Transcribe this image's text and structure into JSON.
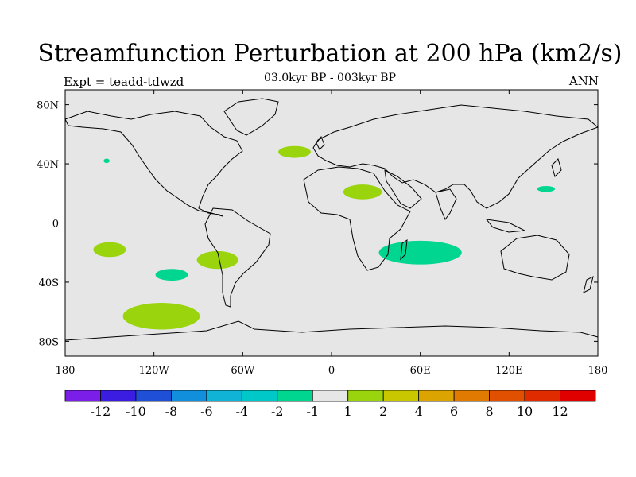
{
  "title": "Streamfunction Perturbation at 200 hPa (km2/s)",
  "subtitle": "03.0kyr BP - 003kyr BP",
  "left_label": "Expt = teadd-tdwzd",
  "right_label": "ANN",
  "chart_data": {
    "type": "map",
    "title": "Streamfunction Perturbation at 200 hPa (km2/s)",
    "projection": "cylindrical equidistant",
    "lon_range": [
      -180,
      180
    ],
    "lat_range": [
      -90,
      90
    ],
    "lon_ticks": [
      {
        "value": -180,
        "label": "180"
      },
      {
        "value": -120,
        "label": "120W"
      },
      {
        "value": -60,
        "label": "60W"
      },
      {
        "value": 0,
        "label": "0"
      },
      {
        "value": 60,
        "label": "60E"
      },
      {
        "value": 120,
        "label": "120E"
      },
      {
        "value": 180,
        "label": "180"
      }
    ],
    "lat_ticks": [
      {
        "value": 80,
        "label": "80N"
      },
      {
        "value": 40,
        "label": "40N"
      },
      {
        "value": 0,
        "label": "0"
      },
      {
        "value": -40,
        "label": "40S"
      },
      {
        "value": -80,
        "label": "80S"
      }
    ],
    "contour_regions": [
      {
        "name": "north-atlantic-positive",
        "bin": "1 to 2",
        "center_lon": -25,
        "center_lat": 48,
        "lon_radius": 11,
        "lat_radius": 4
      },
      {
        "name": "sahara-positive",
        "bin": "1 to 2",
        "center_lon": 21,
        "center_lat": 21,
        "lon_radius": 13,
        "lat_radius": 5
      },
      {
        "name": "south-pacific-central-positive",
        "bin": "1 to 2",
        "center_lon": -150,
        "center_lat": -18,
        "lon_radius": 11,
        "lat_radius": 5
      },
      {
        "name": "south-america-positive",
        "bin": "1 to 2",
        "center_lon": -77,
        "center_lat": -25,
        "lon_radius": 14,
        "lat_radius": 6
      },
      {
        "name": "southern-ocean-positive",
        "bin": "1 to 2",
        "center_lon": -115,
        "center_lat": -63,
        "lon_radius": 26,
        "lat_radius": 9
      },
      {
        "name": "south-indian-negative",
        "bin": "-2 to -1",
        "center_lon": 60,
        "center_lat": -20,
        "lon_radius": 28,
        "lat_radius": 8
      },
      {
        "name": "south-pacific-east-negative",
        "bin": "-2 to -1",
        "center_lon": -108,
        "center_lat": -35,
        "lon_radius": 11,
        "lat_radius": 4
      },
      {
        "name": "west-pacific-negative",
        "bin": "-2 to -1",
        "center_lon": 145,
        "center_lat": 23,
        "lon_radius": 6,
        "lat_radius": 2
      },
      {
        "name": "north-pacific-small-negative",
        "bin": "-2 to -1",
        "center_lon": -152,
        "center_lat": 42,
        "lon_radius": 2,
        "lat_radius": 1.5
      }
    ],
    "colorbar": {
      "labels": [
        "-12",
        "-10",
        "-8",
        "-6",
        "-4",
        "-2",
        "-1",
        "1",
        "2",
        "4",
        "6",
        "8",
        "10",
        "12"
      ],
      "colors": [
        "#7a1ee8",
        "#3a1de0",
        "#1e4fd6",
        "#128fdc",
        "#10b2d6",
        "#00c8c8",
        "#00d690",
        "#e6e6e6",
        "#99d40c",
        "#c9c800",
        "#dca400",
        "#e07a00",
        "#e05000",
        "#e02a00",
        "#e00000"
      ]
    },
    "land_color": "#e6e6e6",
    "ocean_color": "#e6e6e6"
  }
}
